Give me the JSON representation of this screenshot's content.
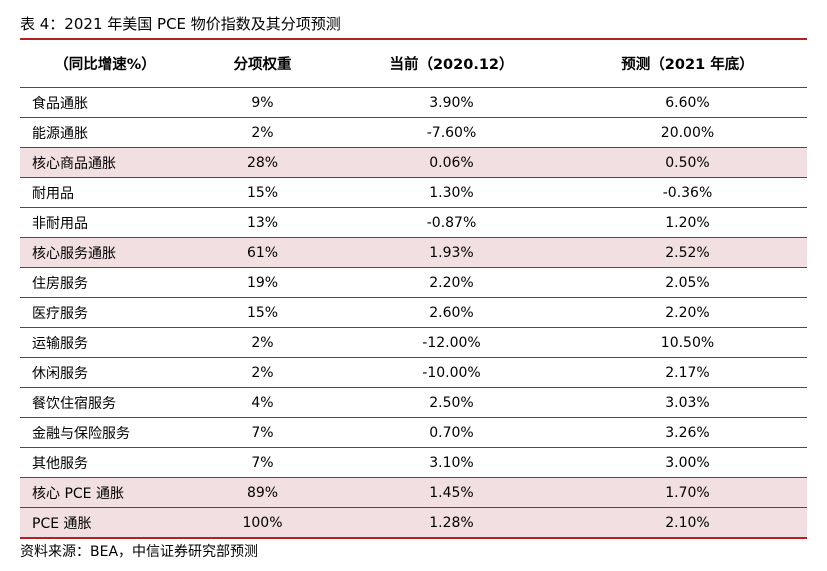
{
  "title": "表 4：2021 年美国 PCE 物价指数及其分项预测",
  "table": {
    "headers": [
      "（同比增速%）",
      "分项权重",
      "当前（2020.12）",
      "预测（2021 年底）"
    ],
    "rows": [
      {
        "cells": [
          "食品通胀",
          "9%",
          "3.90%",
          "6.60%"
        ],
        "highlight": false
      },
      {
        "cells": [
          "能源通胀",
          "2%",
          "-7.60%",
          "20.00%"
        ],
        "highlight": false
      },
      {
        "cells": [
          "核心商品通胀",
          "28%",
          "0.06%",
          "0.50%"
        ],
        "highlight": true
      },
      {
        "cells": [
          "耐用品",
          "15%",
          "1.30%",
          "-0.36%"
        ],
        "highlight": false
      },
      {
        "cells": [
          "非耐用品",
          "13%",
          "-0.87%",
          "1.20%"
        ],
        "highlight": false
      },
      {
        "cells": [
          "核心服务通胀",
          "61%",
          "1.93%",
          "2.52%"
        ],
        "highlight": true
      },
      {
        "cells": [
          "住房服务",
          "19%",
          "2.20%",
          "2.05%"
        ],
        "highlight": false
      },
      {
        "cells": [
          "医疗服务",
          "15%",
          "2.60%",
          "2.20%"
        ],
        "highlight": false
      },
      {
        "cells": [
          "运输服务",
          "2%",
          "-12.00%",
          "10.50%"
        ],
        "highlight": false
      },
      {
        "cells": [
          "休闲服务",
          "2%",
          "-10.00%",
          "2.17%"
        ],
        "highlight": false
      },
      {
        "cells": [
          "餐饮住宿服务",
          "4%",
          "2.50%",
          "3.03%"
        ],
        "highlight": false
      },
      {
        "cells": [
          "金融与保险服务",
          "7%",
          "0.70%",
          "3.26%"
        ],
        "highlight": false
      },
      {
        "cells": [
          "其他服务",
          "7%",
          "3.10%",
          "3.00%"
        ],
        "highlight": false
      },
      {
        "cells": [
          "核心 PCE 通胀",
          "89%",
          "1.45%",
          "1.70%"
        ],
        "highlight": true
      },
      {
        "cells": [
          "PCE 通胀",
          "100%",
          "1.28%",
          "2.10%"
        ],
        "highlight": true
      }
    ]
  },
  "source": "资料来源：BEA，中信证券研究部预测",
  "colors": {
    "rule": "#b22222",
    "highlight": "#f2dfe2"
  }
}
